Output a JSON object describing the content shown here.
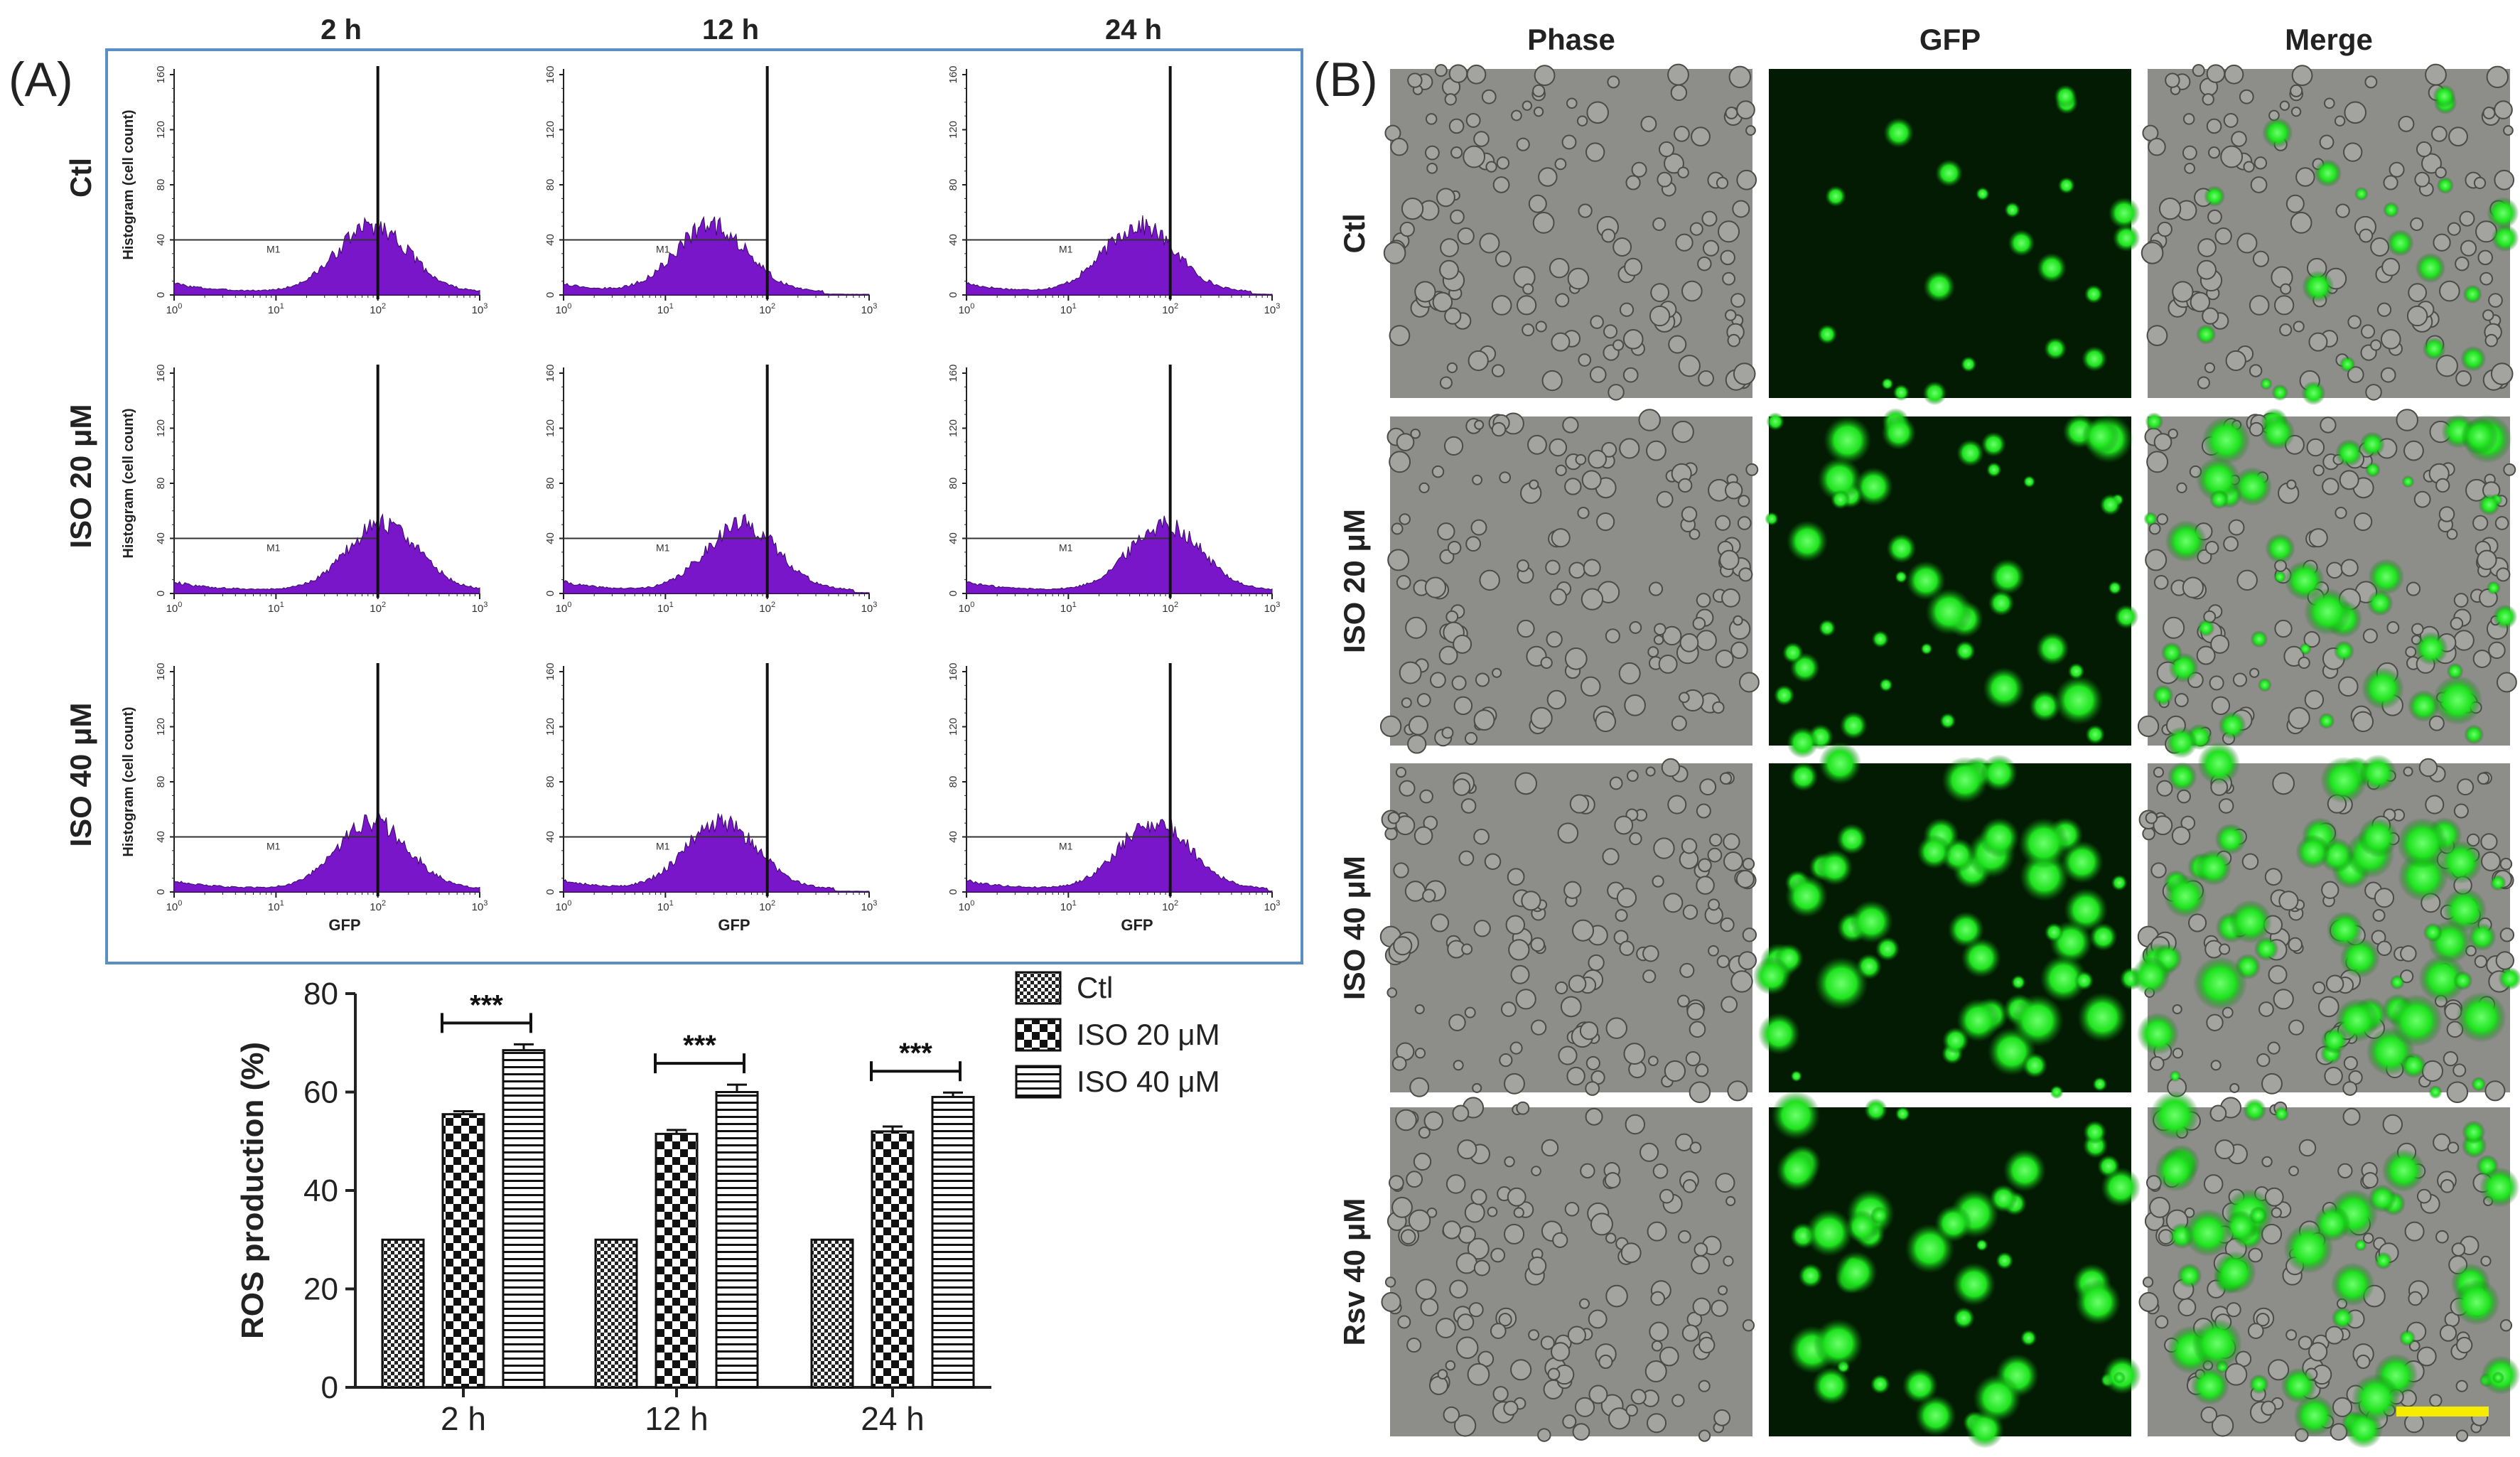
{
  "panel_a_label": "(A)",
  "panel_b_label": "(B)",
  "histogram_grid": {
    "column_headers": [
      "2 h",
      "12 h",
      "24 h"
    ],
    "row_labels": [
      "Ctl",
      "ISO 20 μM",
      "ISO 40 μM"
    ],
    "ylabel": "Histogram (cell count)",
    "xlabel": "GFP",
    "y_ticks": [
      "0",
      "40",
      "80",
      "120",
      "160"
    ],
    "x_ticks": [
      "10",
      "10",
      "10",
      "10"
    ],
    "x_tick_exponents": [
      "0",
      "1",
      "2",
      "3"
    ],
    "gate_label": "M1",
    "fill_color": "#7a16c9",
    "frame_color": "#5b8fc4",
    "peak_log": [
      [
        1.95,
        1.45,
        1.7
      ],
      [
        2.05,
        1.75,
        1.95
      ],
      [
        1.95,
        1.55,
        1.85
      ]
    ]
  },
  "chart_data": {
    "type": "bar",
    "categories": [
      "2 h",
      "12 h",
      "24 h"
    ],
    "series": [
      {
        "name": "Ctl",
        "values": [
          30,
          30,
          30
        ],
        "errors": [
          0,
          0,
          0
        ],
        "pattern": "fine-check"
      },
      {
        "name": "ISO 20 μM",
        "values": [
          55.5,
          51.5,
          52
        ],
        "errors": [
          0.6,
          0.8,
          1.0
        ],
        "pattern": "checker"
      },
      {
        "name": "ISO 40 μM",
        "values": [
          68.5,
          60,
          59
        ],
        "errors": [
          1.2,
          1.5,
          0.9
        ],
        "pattern": "horizontal-lines"
      }
    ],
    "ylabel": "ROS production (%)",
    "ylim": [
      0,
      80
    ],
    "y_ticks": [
      0,
      20,
      40,
      60,
      80
    ],
    "significance": [
      "***",
      "***",
      "***"
    ],
    "legend_position": "top-right"
  },
  "microscopy": {
    "column_headers": [
      "Phase",
      "GFP",
      "Merge"
    ],
    "row_labels": [
      "Ctl",
      "ISO 20 μM",
      "ISO 40 μM",
      "Rsv 40 μM"
    ],
    "green_intensity": [
      0.25,
      0.8,
      0.95,
      0.8
    ],
    "scale_bar_color": "#f5ec00"
  }
}
